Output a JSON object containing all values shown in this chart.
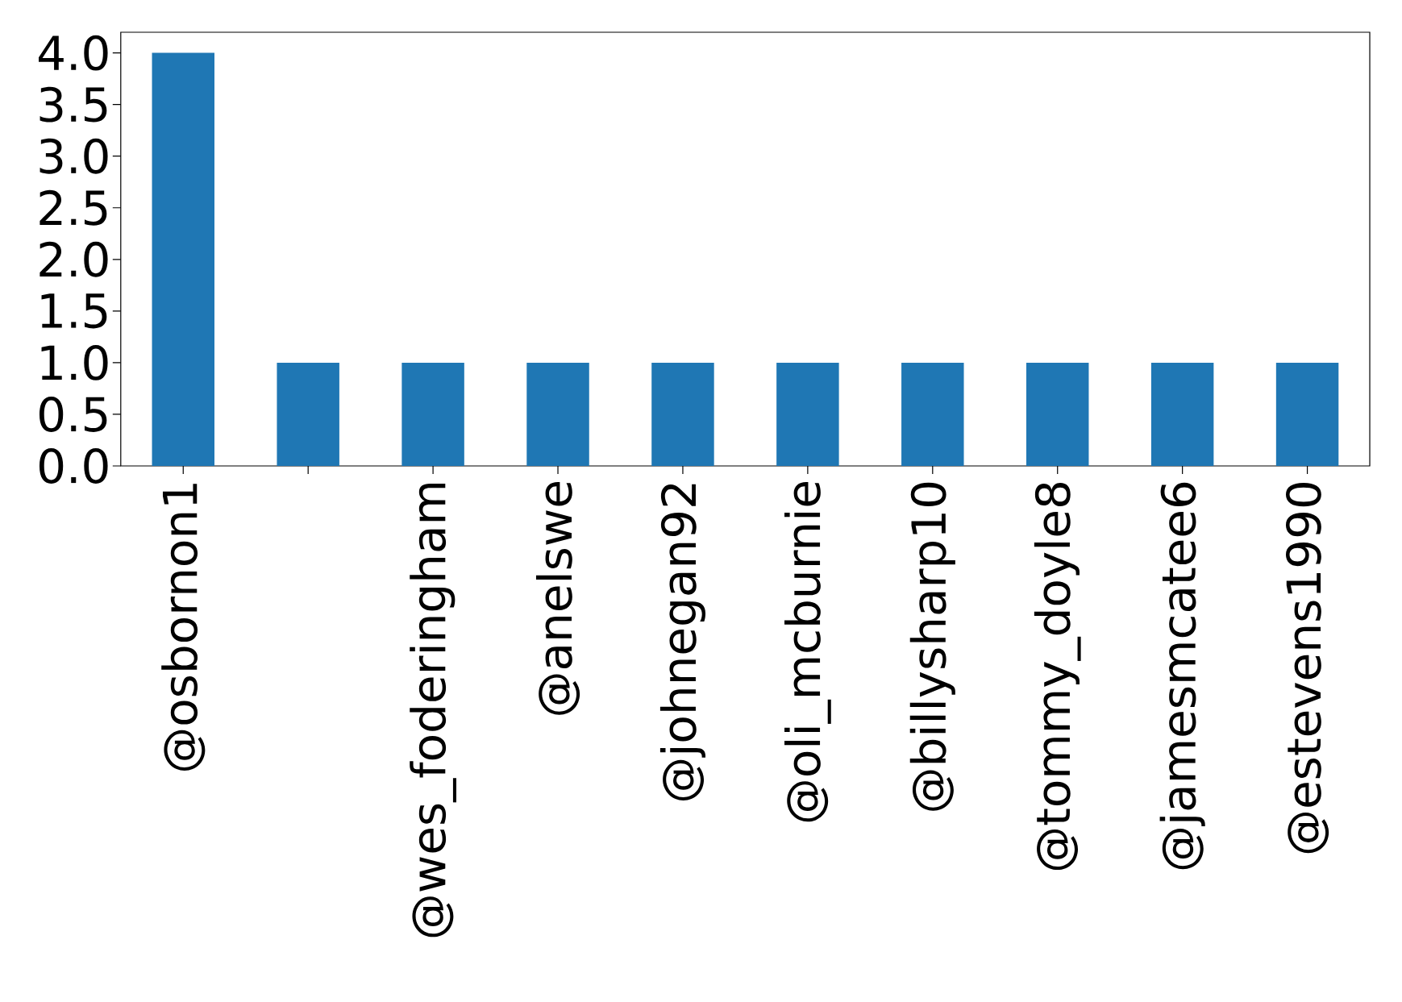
{
  "chart_data": {
    "type": "bar",
    "categories": [
      "@osbornon1",
      null,
      "@wes_foderingham",
      "@anelswe",
      "@johnegan92",
      "@oli_mcburnie",
      "@billysharp10",
      "@tommy_doyle8",
      "@jamesmcatee6",
      "@estevens1990"
    ],
    "values": [
      4,
      1,
      1,
      1,
      1,
      1,
      1,
      1,
      1,
      1
    ],
    "color": "#1f77b4",
    "ylim": [
      0,
      4.2
    ],
    "yticks": [
      {
        "value": 0,
        "label": "0.0"
      },
      {
        "value": 0.5,
        "label": "0.5"
      },
      {
        "value": 1,
        "label": "1.0"
      },
      {
        "value": 1.5,
        "label": "1.5"
      },
      {
        "value": 2,
        "label": "2.0"
      },
      {
        "value": 2.5,
        "label": "2.5"
      },
      {
        "value": 3,
        "label": "3.0"
      },
      {
        "value": 3.5,
        "label": "3.5"
      },
      {
        "value": 4,
        "label": "4.0"
      }
    ]
  }
}
